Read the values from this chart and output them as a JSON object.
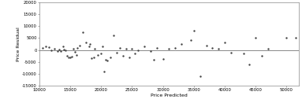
{
  "title": "",
  "xlabel": "Price Predicted",
  "ylabel": "Price Residual",
  "xlim": [
    10000,
    52000
  ],
  "ylim": [
    -15000,
    20000
  ],
  "xticks": [
    10000,
    15000,
    20000,
    25000,
    30000,
    35000,
    40000,
    45000,
    50000
  ],
  "yticks": [
    -15000,
    -10000,
    -5000,
    0,
    5000,
    10000,
    15000,
    20000
  ],
  "hline_y": 0,
  "scatter_color": "#444444",
  "marker_size": 3,
  "background_color": "#ffffff",
  "points_x": [
    10500,
    11000,
    11500,
    12000,
    12500,
    13000,
    13200,
    13500,
    13800,
    14000,
    14200,
    14500,
    14800,
    15000,
    15200,
    15500,
    15800,
    16000,
    16200,
    16500,
    17000,
    17500,
    18000,
    18200,
    18500,
    18800,
    19000,
    19500,
    20000,
    20200,
    20500,
    20800,
    21000,
    21500,
    22000,
    22500,
    23000,
    23500,
    24000,
    24500,
    25000,
    25500,
    26000,
    27000,
    28000,
    28500,
    29000,
    30000,
    31000,
    32000,
    33000,
    34500,
    35000,
    36000,
    37000,
    38000,
    39000,
    40000,
    41000,
    43000,
    44000,
    45000,
    46000,
    47000,
    50000,
    51500
  ],
  "points_y": [
    800,
    1500,
    1200,
    -200,
    500,
    -600,
    200,
    -300,
    1500,
    300,
    -100,
    -2500,
    -3000,
    -3200,
    -2800,
    500,
    -800,
    -2000,
    1000,
    2000,
    7500,
    3000,
    1500,
    2500,
    -3500,
    -3200,
    500,
    -2000,
    -1500,
    1500,
    -9000,
    -4000,
    -4500,
    -3000,
    6000,
    -1000,
    1000,
    -2500,
    500,
    -3000,
    500,
    -1500,
    0,
    1500,
    -500,
    -4000,
    1000,
    -3800,
    500,
    1000,
    2500,
    4000,
    8000,
    -11000,
    2000,
    1000,
    500,
    3000,
    -1000,
    -1500,
    -6000,
    5000,
    -2500,
    500,
    5000,
    5000
  ]
}
